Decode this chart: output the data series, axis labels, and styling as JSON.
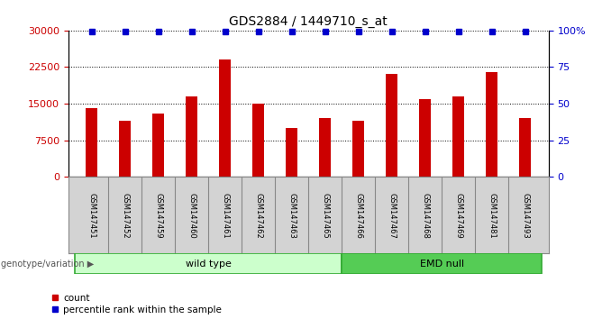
{
  "title": "GDS2884 / 1449710_s_at",
  "samples": [
    "GSM147451",
    "GSM147452",
    "GSM147459",
    "GSM147460",
    "GSM147461",
    "GSM147462",
    "GSM147463",
    "GSM147465",
    "GSM147466",
    "GSM147467",
    "GSM147468",
    "GSM147469",
    "GSM147481",
    "GSM147493"
  ],
  "counts": [
    14000,
    11500,
    13000,
    16500,
    24000,
    15000,
    10000,
    12000,
    11500,
    21000,
    16000,
    16500,
    21500,
    12000
  ],
  "percentile_ranks": [
    99,
    99,
    99,
    99,
    99,
    99,
    99,
    99,
    99,
    99,
    99,
    99,
    99,
    99
  ],
  "bar_color": "#cc0000",
  "dot_color": "#0000cc",
  "ylim_left": [
    0,
    30000
  ],
  "ylim_right": [
    0,
    100
  ],
  "yticks_left": [
    0,
    7500,
    15000,
    22500,
    30000
  ],
  "yticks_right": [
    0,
    25,
    50,
    75,
    100
  ],
  "ytick_labels_right": [
    "0",
    "25",
    "50",
    "75",
    "100%"
  ],
  "groups": [
    {
      "label": "wild type",
      "start": 0,
      "end": 7,
      "color": "#ccffcc"
    },
    {
      "label": "EMD null",
      "start": 8,
      "end": 13,
      "color": "#55cc55"
    }
  ],
  "group_label": "genotype/variation",
  "legend_items": [
    {
      "label": "count",
      "color": "#cc0000"
    },
    {
      "label": "percentile rank within the sample",
      "color": "#0000cc"
    }
  ],
  "grid_color": "#000000",
  "tick_color_left": "#cc0000",
  "tick_color_right": "#0000cc",
  "bar_width": 0.35,
  "background_color": "#ffffff",
  "plot_bg_color": "#ffffff",
  "xtick_bg_color": "#d3d3d3"
}
